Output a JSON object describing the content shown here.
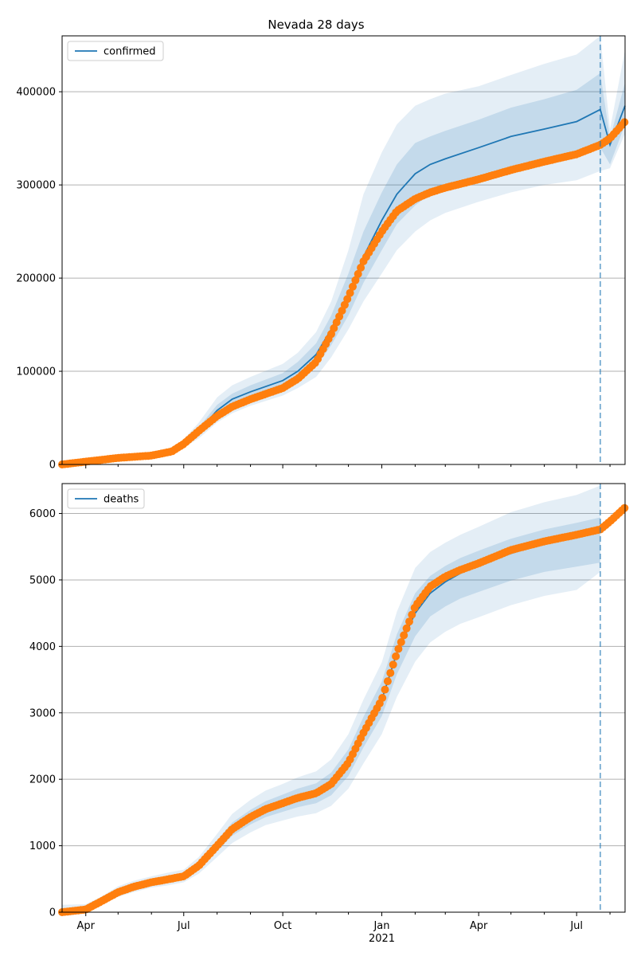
{
  "title": "Nevada 28 days",
  "colors": {
    "model": "#1f77b4",
    "observed": "#ff7f0e",
    "grid": "#b0b0b0",
    "axis": "#000000",
    "forecast_line": "#1f77b4"
  },
  "chart_data": [
    {
      "type": "line",
      "panel": "top",
      "title": "Nevada 28 days",
      "xlabel": "",
      "ylabel": "",
      "xlim": [
        "2020-03-10",
        "2021-08-15"
      ],
      "ylim": [
        0,
        460000
      ],
      "yticks": [
        0,
        100000,
        200000,
        300000,
        400000
      ],
      "ytick_labels": [
        "0",
        "100000",
        "200000",
        "300000",
        "400000"
      ],
      "grid": "y",
      "legend": {
        "label": "confirmed",
        "placement": "top-left"
      },
      "forecast_start": "2021-07-23",
      "series": [
        {
          "name": "confirmed",
          "kind": "model",
          "x": [
            "2020-03-10",
            "2020-04-01",
            "2020-05-01",
            "2020-06-01",
            "2020-06-20",
            "2020-07-01",
            "2020-07-15",
            "2020-08-01",
            "2020-08-15",
            "2020-09-01",
            "2020-10-01",
            "2020-10-15",
            "2020-11-01",
            "2020-11-15",
            "2020-12-01",
            "2020-12-15",
            "2021-01-01",
            "2021-01-15",
            "2021-02-01",
            "2021-02-15",
            "2021-03-01",
            "2021-04-01",
            "2021-05-01",
            "2021-06-01",
            "2021-07-01",
            "2021-07-23",
            "2021-08-01",
            "2021-08-15"
          ],
          "y": [
            0,
            3000,
            7000,
            9500,
            14000,
            22000,
            36000,
            58000,
            70000,
            78000,
            90000,
            100000,
            118000,
            145000,
            183000,
            223000,
            262000,
            290000,
            312000,
            322000,
            328000,
            340000,
            352000,
            360000,
            368000,
            381000,
            343000,
            385000
          ],
          "band_inner": [
            [
              0,
              0
            ],
            [
              2500,
              3500
            ],
            [
              6500,
              7500
            ],
            [
              9000,
              10500
            ],
            [
              13000,
              15000
            ],
            [
              20000,
              24000
            ],
            [
              32000,
              40000
            ],
            [
              52000,
              64000
            ],
            [
              63000,
              76000
            ],
            [
              71000,
              85000
            ],
            [
              82000,
              98000
            ],
            [
              91000,
              110000
            ],
            [
              105000,
              130000
            ],
            [
              128000,
              160000
            ],
            [
              160000,
              205000
            ],
            [
              195000,
              250000
            ],
            [
              230000,
              292000
            ],
            [
              258000,
              322000
            ],
            [
              278000,
              345000
            ],
            [
              290000,
              352000
            ],
            [
              296000,
              358000
            ],
            [
              308000,
              370000
            ],
            [
              318000,
              383000
            ],
            [
              325000,
              392000
            ],
            [
              330000,
              402000
            ],
            [
              340000,
              420000
            ],
            [
              322000,
              350000
            ],
            [
              365000,
              410000
            ]
          ],
          "band_outer": [
            [
              0,
              0
            ],
            [
              2000,
              4000
            ],
            [
              6000,
              8500
            ],
            [
              8500,
              11500
            ],
            [
              12000,
              16500
            ],
            [
              18000,
              27000
            ],
            [
              28000,
              45000
            ],
            [
              45000,
              72000
            ],
            [
              55000,
              85000
            ],
            [
              63000,
              94000
            ],
            [
              74000,
              108000
            ],
            [
              82000,
              120000
            ],
            [
              94000,
              142000
            ],
            [
              115000,
              175000
            ],
            [
              145000,
              230000
            ],
            [
              175000,
              290000
            ],
            [
              205000,
              335000
            ],
            [
              230000,
              365000
            ],
            [
              250000,
              385000
            ],
            [
              262000,
              392000
            ],
            [
              270000,
              398000
            ],
            [
              282000,
              406000
            ],
            [
              292000,
              418000
            ],
            [
              300000,
              430000
            ],
            [
              305000,
              440000
            ],
            [
              315000,
              460000
            ],
            [
              318000,
              360000
            ],
            [
              355000,
              445000
            ]
          ]
        },
        {
          "name": "observed",
          "kind": "observed",
          "x": [
            "2020-03-10",
            "2020-04-01",
            "2020-05-01",
            "2020-06-01",
            "2020-06-20",
            "2020-07-01",
            "2020-07-15",
            "2020-08-01",
            "2020-08-15",
            "2020-09-01",
            "2020-10-01",
            "2020-10-15",
            "2020-11-01",
            "2020-11-15",
            "2020-12-01",
            "2020-12-15",
            "2021-01-01",
            "2021-01-15",
            "2021-02-01",
            "2021-02-15",
            "2021-03-01",
            "2021-04-01",
            "2021-05-01",
            "2021-06-01",
            "2021-07-01",
            "2021-07-23",
            "2021-08-01",
            "2021-08-15"
          ],
          "y": [
            0,
            3000,
            7000,
            9500,
            14000,
            22000,
            36000,
            52000,
            62000,
            70000,
            82000,
            92000,
            110000,
            140000,
            180000,
            218000,
            250000,
            272000,
            285000,
            292000,
            297000,
            306000,
            316000,
            325000,
            333000,
            343000,
            350000,
            368000
          ]
        }
      ]
    },
    {
      "type": "line",
      "panel": "bottom",
      "xlabel": "",
      "ylabel": "",
      "xlim": [
        "2020-03-10",
        "2021-08-15"
      ],
      "ylim": [
        0,
        6450
      ],
      "yticks": [
        0,
        1000,
        2000,
        3000,
        4000,
        5000,
        6000
      ],
      "ytick_labels": [
        "0",
        "1000",
        "2000",
        "3000",
        "4000",
        "5000",
        "6000"
      ],
      "xticks": [
        "2020-04-01",
        "2020-07-01",
        "2020-10-01",
        "2021-01-01",
        "2021-04-01",
        "2021-07-01"
      ],
      "xtick_labels": [
        "Apr",
        "Jul",
        "Oct",
        "Jan",
        "Apr",
        "Jul"
      ],
      "xtick_year_label": "2021",
      "grid": "y",
      "legend": {
        "label": "deaths",
        "placement": "top-left"
      },
      "forecast_start": "2021-07-23",
      "series": [
        {
          "name": "deaths",
          "kind": "model",
          "x": [
            "2020-03-10",
            "2020-04-01",
            "2020-04-15",
            "2020-05-01",
            "2020-05-15",
            "2020-06-01",
            "2020-06-15",
            "2020-07-01",
            "2020-07-15",
            "2020-08-01",
            "2020-08-15",
            "2020-09-01",
            "2020-09-15",
            "2020-10-01",
            "2020-10-15",
            "2020-11-01",
            "2020-11-15",
            "2020-12-01",
            "2020-12-15",
            "2021-01-01",
            "2021-01-15",
            "2021-02-01",
            "2021-02-15",
            "2021-03-01",
            "2021-03-15",
            "2021-04-01",
            "2021-05-01",
            "2021-06-01",
            "2021-07-01",
            "2021-07-23"
          ],
          "y": [
            0,
            40,
            160,
            300,
            380,
            450,
            490,
            540,
            700,
            1000,
            1250,
            1430,
            1550,
            1640,
            1720,
            1790,
            1930,
            2250,
            2700,
            3200,
            3900,
            4500,
            4800,
            4970,
            5100,
            5220,
            5400,
            5550,
            5650,
            5720
          ],
          "band_inner": [
            [
              0,
              40
            ],
            [
              20,
              80
            ],
            [
              140,
              190
            ],
            [
              270,
              340
            ],
            [
              350,
              420
            ],
            [
              420,
              490
            ],
            [
              460,
              530
            ],
            [
              510,
              580
            ],
            [
              650,
              760
            ],
            [
              920,
              1080
            ],
            [
              1150,
              1350
            ],
            [
              1320,
              1540
            ],
            [
              1430,
              1670
            ],
            [
              1510,
              1770
            ],
            [
              1580,
              1860
            ],
            [
              1640,
              1940
            ],
            [
              1760,
              2100
            ],
            [
              2050,
              2450
            ],
            [
              2480,
              2940
            ],
            [
              2950,
              3470
            ],
            [
              3580,
              4180
            ],
            [
              4150,
              4800
            ],
            [
              4450,
              5060
            ],
            [
              4600,
              5210
            ],
            [
              4720,
              5330
            ],
            [
              4820,
              5440
            ],
            [
              4990,
              5620
            ],
            [
              5120,
              5760
            ],
            [
              5200,
              5860
            ],
            [
              5260,
              5940
            ]
          ],
          "band_outer": [
            [
              0,
              110
            ],
            [
              0,
              120
            ],
            [
              110,
              230
            ],
            [
              230,
              390
            ],
            [
              300,
              470
            ],
            [
              370,
              540
            ],
            [
              400,
              590
            ],
            [
              450,
              640
            ],
            [
              580,
              830
            ],
            [
              830,
              1180
            ],
            [
              1040,
              1480
            ],
            [
              1200,
              1690
            ],
            [
              1310,
              1830
            ],
            [
              1380,
              1930
            ],
            [
              1440,
              2030
            ],
            [
              1490,
              2120
            ],
            [
              1600,
              2300
            ],
            [
              1860,
              2680
            ],
            [
              2240,
              3200
            ],
            [
              2680,
              3760
            ],
            [
              3240,
              4520
            ],
            [
              3770,
              5180
            ],
            [
              4060,
              5420
            ],
            [
              4220,
              5560
            ],
            [
              4340,
              5680
            ],
            [
              4440,
              5800
            ],
            [
              4620,
              6020
            ],
            [
              4760,
              6170
            ],
            [
              4850,
              6280
            ],
            [
              5120,
              6420
            ]
          ]
        },
        {
          "name": "observed",
          "kind": "observed",
          "x": [
            "2020-03-10",
            "2020-04-01",
            "2020-04-15",
            "2020-05-01",
            "2020-05-15",
            "2020-06-01",
            "2020-06-15",
            "2020-07-01",
            "2020-07-15",
            "2020-08-01",
            "2020-08-15",
            "2020-09-01",
            "2020-09-15",
            "2020-10-01",
            "2020-10-15",
            "2020-11-01",
            "2020-11-15",
            "2020-12-01",
            "2020-12-15",
            "2021-01-01",
            "2021-01-15",
            "2021-02-01",
            "2021-02-15",
            "2021-03-01",
            "2021-03-15",
            "2021-04-01",
            "2021-05-01",
            "2021-06-01",
            "2021-07-01",
            "2021-07-23",
            "2021-08-01",
            "2021-08-15"
          ],
          "y": [
            0,
            40,
            160,
            300,
            380,
            450,
            490,
            540,
            700,
            1000,
            1250,
            1430,
            1550,
            1640,
            1720,
            1790,
            1930,
            2250,
            2700,
            3200,
            3900,
            4600,
            4900,
            5050,
            5150,
            5250,
            5450,
            5580,
            5680,
            5760,
            5880,
            6090
          ]
        }
      ]
    }
  ]
}
